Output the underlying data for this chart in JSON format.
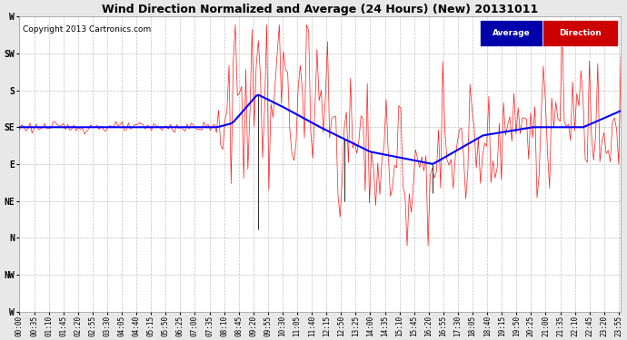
{
  "title": "Wind Direction Normalized and Average (24 Hours) (New) 20131011",
  "copyright": "Copyright 2013 Cartronics.com",
  "yticks_labels": [
    "W",
    "SW",
    "S",
    "SE",
    "E",
    "NE",
    "N",
    "NW",
    "W"
  ],
  "yticks_values": [
    360,
    315,
    270,
    225,
    180,
    135,
    90,
    45,
    0
  ],
  "ylim": [
    0,
    360
  ],
  "background_color": "#e8e8e8",
  "plot_bg_color": "#ffffff",
  "grid_color": "#bbbbbb",
  "direction_color": "#ff0000",
  "average_color": "#0000ff",
  "legend_avg_bg": "#0000aa",
  "legend_dir_bg": "#cc0000",
  "legend_avg_text": "Average",
  "legend_dir_text": "Direction",
  "title_fontsize": 9,
  "copyright_fontsize": 6.5
}
